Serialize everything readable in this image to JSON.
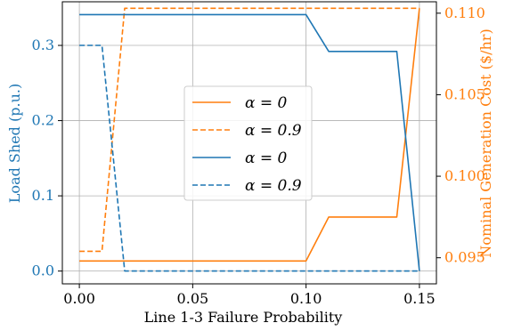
{
  "chart_data": {
    "type": "line",
    "title": "",
    "xlabel": "Line 1-3 Failure Probability",
    "ylabel_left": "Load Shed (p.u.)",
    "ylabel_right": "Nominal Generation Cost ($/hr)",
    "xlim": [
      -0.0075,
      0.1575
    ],
    "ylim_left": [
      -0.017,
      0.358
    ],
    "ylim_right": [
      0.0934,
      0.1107
    ],
    "xticks": [
      "0.00",
      "0.05",
      "0.10",
      "0.15"
    ],
    "xtick_values": [
      0.0,
      0.05,
      0.1,
      0.15
    ],
    "yticks_left": [
      "0.0",
      "0.1",
      "0.2",
      "0.3"
    ],
    "ytick_values_left": [
      0.0,
      0.1,
      0.2,
      0.3
    ],
    "yticks_right": [
      "0.095",
      "0.100",
      "0.105",
      "0.110"
    ],
    "ytick_values_right": [
      0.095,
      0.1,
      0.105,
      0.11
    ],
    "grid": true,
    "legend_position": "center",
    "colors": {
      "left_axis": "#1f77b4",
      "right_axis": "#ff7f0e"
    },
    "series": [
      {
        "name": "α = 0",
        "axis": "right",
        "color": "#ff7f0e",
        "style": "solid",
        "x": [
          0.0,
          0.01,
          0.02,
          0.1,
          0.11,
          0.14,
          0.15
        ],
        "values": [
          0.0948,
          0.0948,
          0.0948,
          0.0948,
          0.0975,
          0.0975,
          0.1103
        ]
      },
      {
        "name": "α = 0.9",
        "axis": "right",
        "color": "#ff7f0e",
        "style": "dashed",
        "x": [
          0.0,
          0.01,
          0.02,
          0.1,
          0.15
        ],
        "values": [
          0.0954,
          0.0954,
          0.1103,
          0.1103,
          0.1103
        ]
      },
      {
        "name": "α = 0",
        "axis": "left",
        "color": "#1f77b4",
        "style": "solid",
        "x": [
          0.0,
          0.01,
          0.02,
          0.1,
          0.11,
          0.14,
          0.15
        ],
        "values": [
          0.341,
          0.341,
          0.341,
          0.341,
          0.292,
          0.292,
          0.0
        ]
      },
      {
        "name": "α = 0.9",
        "axis": "left",
        "color": "#1f77b4",
        "style": "dashed",
        "x": [
          0.0,
          0.01,
          0.02,
          0.1,
          0.15
        ],
        "values": [
          0.3,
          0.3,
          0.0,
          0.0,
          0.0
        ]
      }
    ]
  }
}
